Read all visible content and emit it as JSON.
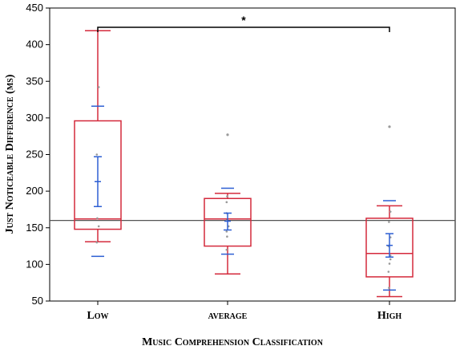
{
  "chart_data": {
    "type": "boxplot",
    "title": "",
    "xlabel": "Music Comprehension Classification",
    "ylabel": "Just Noticeable Difference (ms)",
    "ylim": [
      50,
      450
    ],
    "yticks": [
      50,
      100,
      150,
      200,
      250,
      300,
      350,
      400,
      450
    ],
    "grid": false,
    "reference_line": 160,
    "significance": {
      "label": "*",
      "from": "Low",
      "to": "High"
    },
    "categories": [
      "Low",
      "average",
      "High"
    ],
    "groups": [
      {
        "category": "Low",
        "whisker_low": 131,
        "q1": 148,
        "median": 162,
        "q3": 296,
        "whisker_high": 419,
        "mean": 213,
        "ci95": [
          179,
          247
        ],
        "sd_range": [
          111,
          316
        ],
        "points": [
          130,
          152,
          163,
          250,
          342
        ],
        "outliers": []
      },
      {
        "category": "average",
        "whisker_low": 87,
        "q1": 125,
        "median": 162,
        "q3": 190,
        "whisker_high": 197,
        "mean": 159,
        "ci95": [
          147,
          170
        ],
        "sd_range": [
          114,
          204
        ],
        "points": [
          120,
          138,
          145,
          152,
          160,
          170,
          185,
          193
        ],
        "outliers": [
          277
        ]
      },
      {
        "category": "High",
        "whisker_low": 56,
        "q1": 83,
        "median": 115,
        "q3": 163,
        "whisker_high": 180,
        "mean": 126,
        "ci95": [
          110,
          142
        ],
        "sd_range": [
          65,
          187
        ],
        "points": [
          68,
          90,
          101,
          107,
          112,
          125,
          137,
          158,
          172
        ],
        "outliers": [
          288
        ]
      }
    ],
    "colors": {
      "box": "#d42a3c",
      "error_bar": "#2d5fd3",
      "points": "#9a9a9a",
      "reference_line": "#555555",
      "axis": "#000000",
      "bracket": "#000000"
    }
  }
}
